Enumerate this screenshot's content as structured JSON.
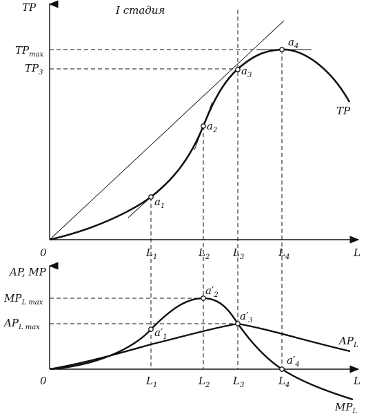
{
  "stage_label": "I стадия",
  "top_panel": {
    "y_axis_label": "TP",
    "y_ticks": [
      {
        "base": "TP",
        "sub": "max"
      },
      {
        "base": "TP",
        "sub": "3"
      }
    ],
    "origin": "0",
    "x_axis_label": "L",
    "x_ticks": [
      {
        "base": "L",
        "sub": "1"
      },
      {
        "base": "L",
        "sub": "2"
      },
      {
        "base": "L",
        "sub": "3"
      },
      {
        "base": "L",
        "sub": "4"
      }
    ],
    "points": [
      {
        "base": "a",
        "sub": "1"
      },
      {
        "base": "a",
        "sub": "2"
      },
      {
        "base": "a",
        "sub": "3"
      },
      {
        "base": "a",
        "sub": "4"
      }
    ],
    "curve_label": "TP"
  },
  "bottom_panel": {
    "y_axis_label": "AP, MP",
    "y_ticks": [
      {
        "base": "MP",
        "sub": "L max"
      },
      {
        "base": "AP",
        "sub": "L max"
      }
    ],
    "origin": "0",
    "x_axis_label": "L",
    "x_ticks": [
      {
        "base": "L",
        "sub": "1"
      },
      {
        "base": "L",
        "sub": "2"
      },
      {
        "base": "L",
        "sub": "3"
      },
      {
        "base": "L",
        "sub": "4"
      }
    ],
    "points": [
      {
        "base": "a′",
        "sub": "1"
      },
      {
        "base": "a′",
        "sub": "2"
      },
      {
        "base": "a′",
        "sub": "3"
      },
      {
        "base": "a′",
        "sub": "4"
      }
    ],
    "curve_labels": [
      {
        "base": "AP",
        "sub": "L"
      },
      {
        "base": "MP",
        "sub": "L"
      }
    ]
  }
}
